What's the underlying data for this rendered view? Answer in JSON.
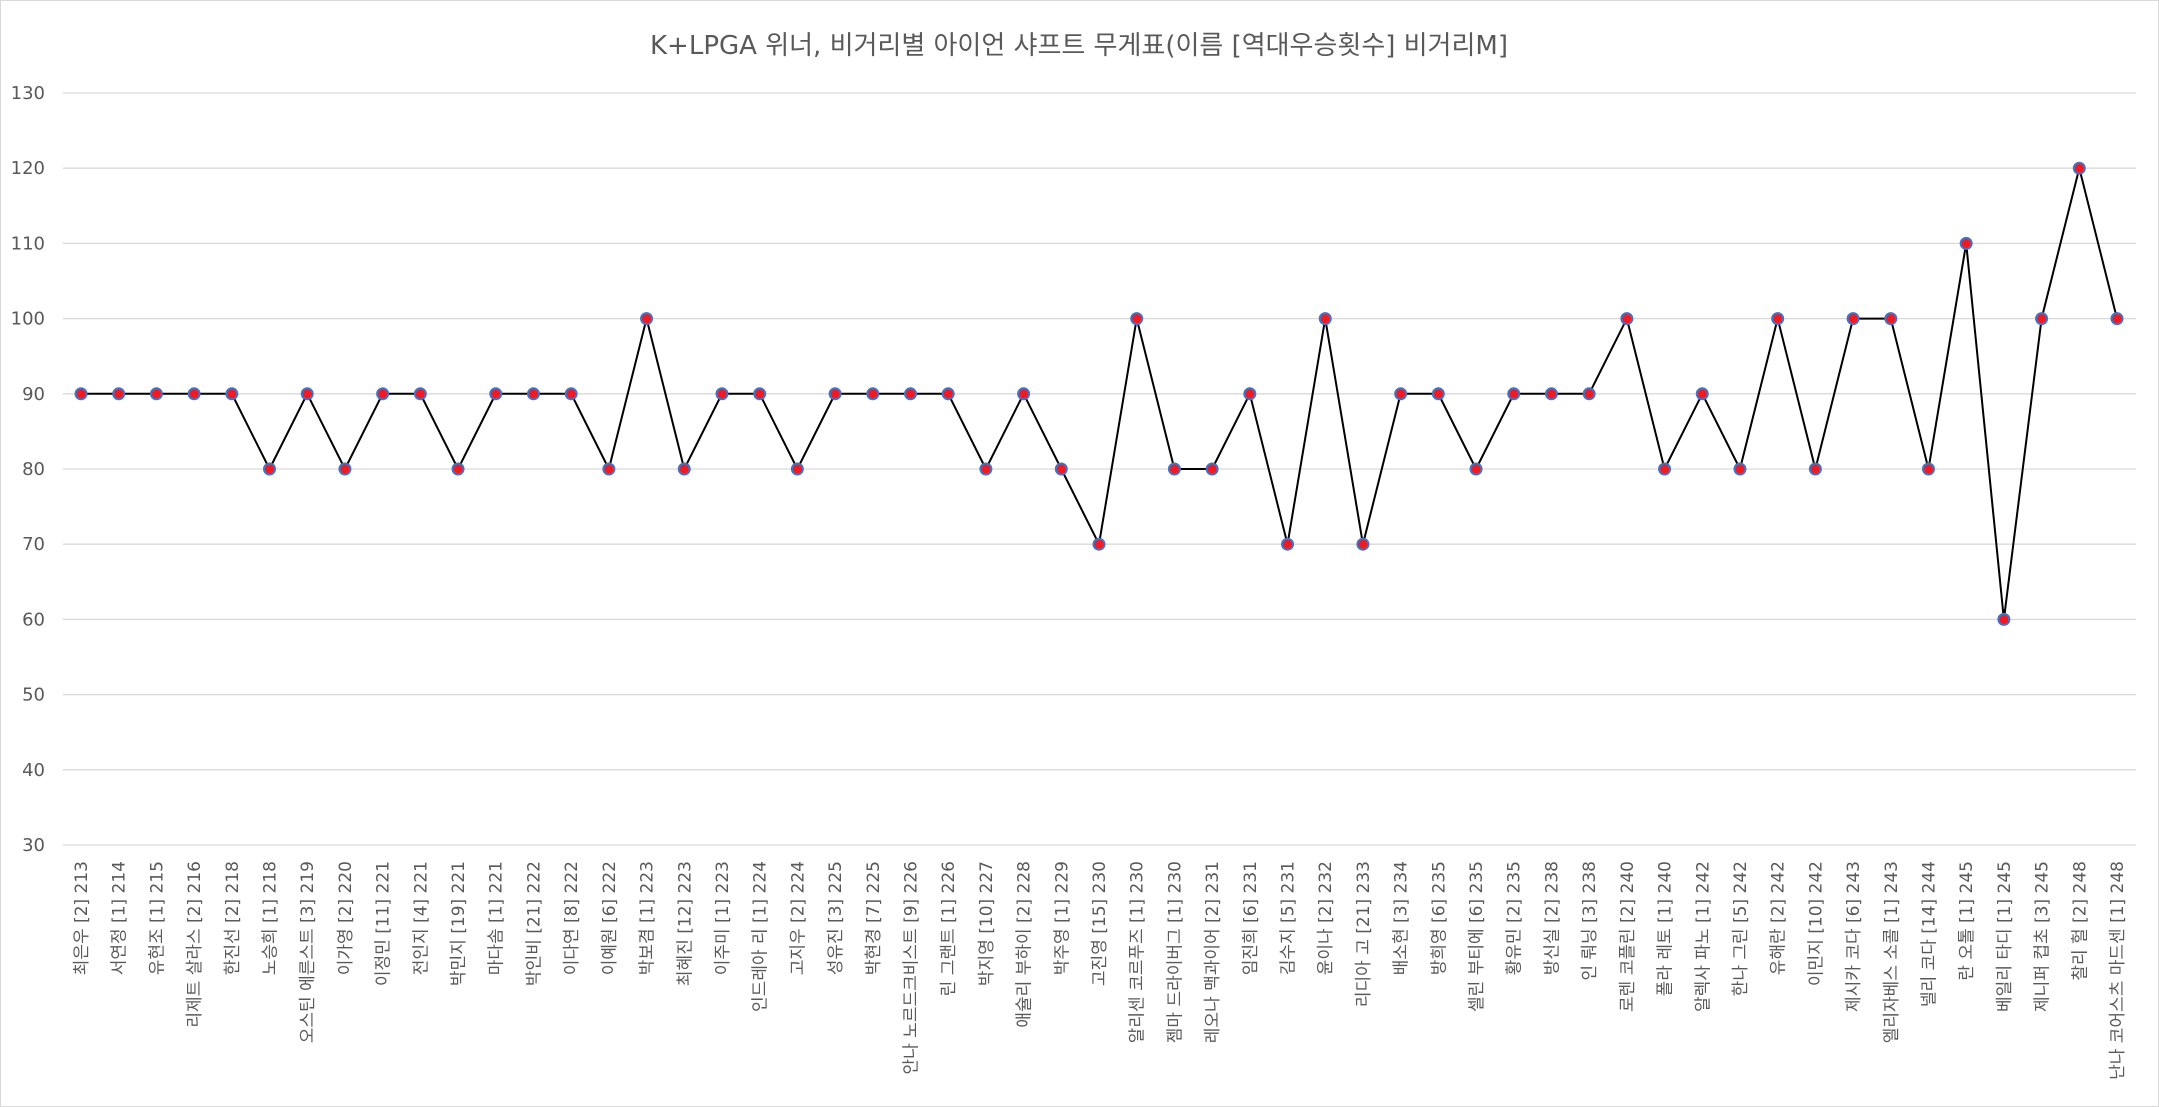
{
  "chart_data": {
    "type": "line",
    "title": "K+LPGA 위너, 비거리별 아이언 샤프트 무게표(이름 [역대우승횟수] 비거리M]",
    "xlabel": "",
    "ylabel": "",
    "ylim": [
      30,
      130
    ],
    "yticks": [
      30,
      40,
      50,
      60,
      70,
      80,
      90,
      100,
      110,
      120,
      130
    ],
    "grid": true,
    "legend": "none",
    "colors": {
      "line": "#000000",
      "marker_fill": "#ed1c24",
      "marker_edge": "#4472c4",
      "grid": "#d9d9d9",
      "text": "#595959"
    },
    "categories": [
      "최은우 [2] 213",
      "서연정 [1] 214",
      "유현조 [1] 215",
      "리제트 살라스 [2] 216",
      "한진선 [2] 218",
      "노승희 [1] 218",
      "오스틴 에른스트 [3] 219",
      "이가영 [2] 220",
      "이정민 [11] 221",
      "전인지 [4] 221",
      "박민지 [19] 221",
      "마다솜 [1] 221",
      "박인비 [21] 222",
      "이다연 [8] 222",
      "이예원 [6] 222",
      "박보겸 [1] 223",
      "최혜진 [12] 223",
      "이주미 [1] 223",
      "인드레아 리 [1] 224",
      "고지우 [2] 224",
      "성유진 [3] 225",
      "박현경 [7] 225",
      "안나 노르드크비스트 [9] 226",
      "린 그랜트 [1] 226",
      "박지영 [10] 227",
      "애슐리 부하이 [2] 228",
      "박주영 [1] 229",
      "고진영 [15] 230",
      "알리센 코르푸즈 [1] 230",
      "젬마 드라이버그 [1] 230",
      "레오나 맥과이어 [2] 231",
      "임진희 [6] 231",
      "김수지 [5] 231",
      "윤이나 [2] 232",
      "리디아 고 [21] 233",
      "배소현 [3] 234",
      "방희영 [6] 235",
      "셀린 부티에 [6] 235",
      "황유민 [2] 235",
      "방신실 [2] 238",
      "인 뤄닝 [3] 238",
      "로렌 코플린 [2] 240",
      "폴라 레토 [1] 240",
      "알렉사 파노 [1] 242",
      "한나 그린 [5] 242",
      "유해란 [2] 242",
      "이민지 [10] 242",
      "제시카 코다 [6] 243",
      "엘리자베스 소콜 [1] 243",
      "넬리 코다 [14] 244",
      "란 오톨 [1] 245",
      "베일리 타디 [1] 245",
      "제니퍼 컵초 [3] 245",
      "찰리 헐 [2] 248",
      "난나 코어스츠 마드센 [1] 248"
    ],
    "series": [
      {
        "values": [
          90,
          90,
          90,
          90,
          90,
          80,
          90,
          80,
          90,
          90,
          80,
          90,
          90,
          90,
          80,
          100,
          80,
          90,
          90,
          80,
          90,
          90,
          90,
          90,
          80,
          90,
          80,
          70,
          100,
          80,
          80,
          90,
          70,
          100,
          70,
          90,
          90,
          80,
          90,
          90,
          90,
          100,
          80,
          90,
          80,
          100,
          80,
          100,
          100,
          80,
          110,
          60,
          100,
          120,
          100
        ]
      }
    ]
  }
}
